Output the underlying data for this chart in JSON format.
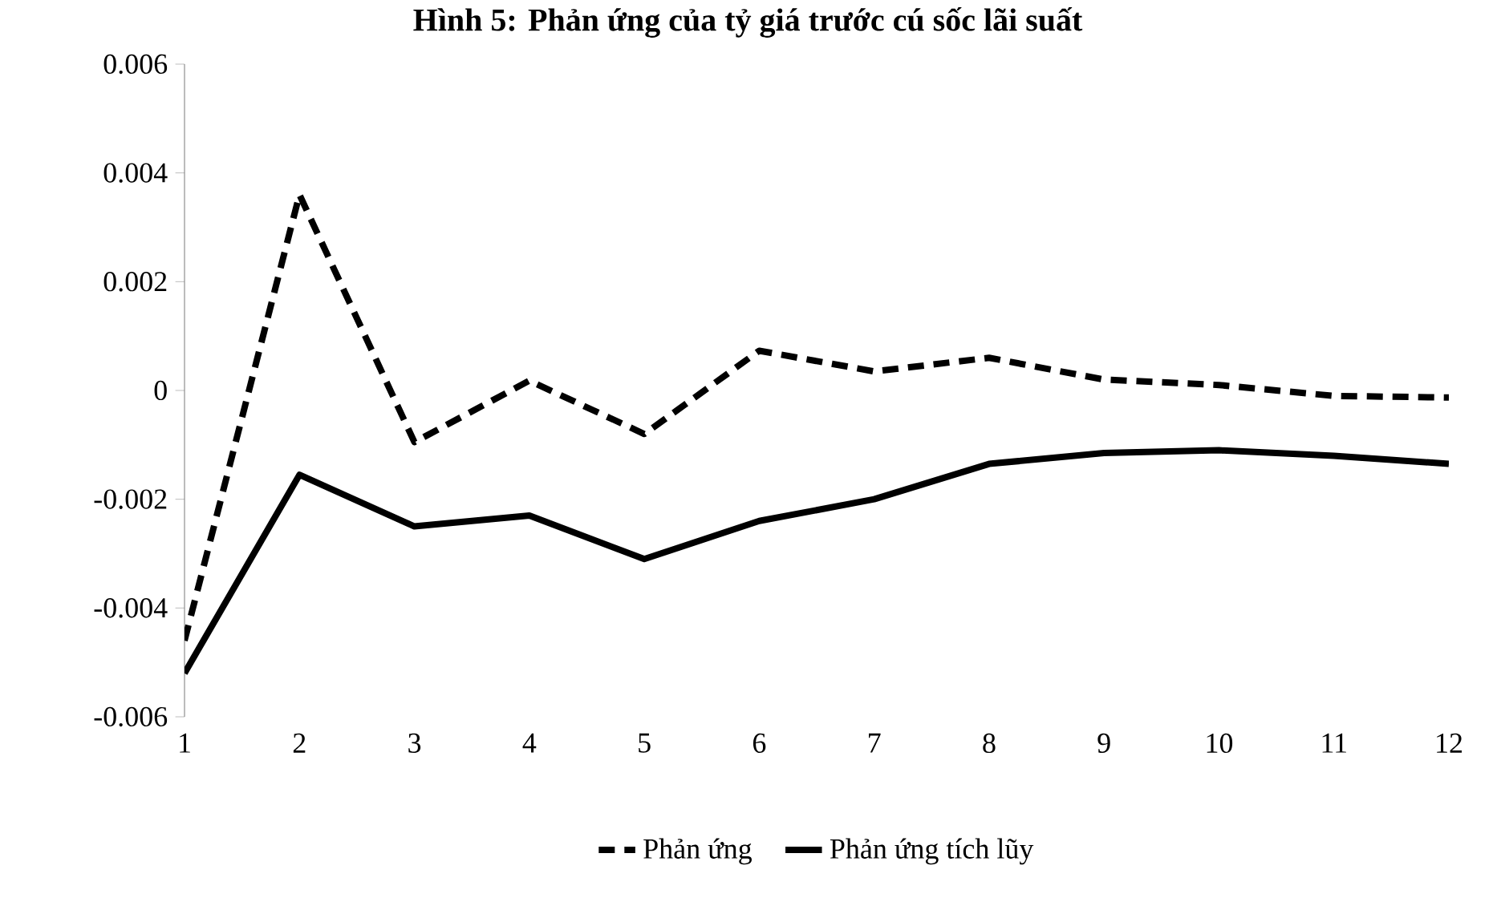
{
  "chart_data": {
    "type": "line",
    "title": "Hình 5: Phản ứng của tỷ giá trước cú sốc lãi suất",
    "categories": [
      "1",
      "2",
      "3",
      "4",
      "5",
      "6",
      "7",
      "8",
      "9",
      "10",
      "11",
      "12"
    ],
    "series": [
      {
        "name": "Phản ứng",
        "color": "#000000",
        "line_style": "dashed",
        "values": [
          -0.0046,
          0.0036,
          -0.00095,
          0.00018,
          -0.0008,
          0.00073,
          0.00035,
          0.0006,
          0.0002,
          0.0001,
          -0.0001,
          -0.00013
        ]
      },
      {
        "name": "Phản ứng tích lũy",
        "color": "#000000",
        "line_style": "solid",
        "values": [
          -0.0052,
          -0.00155,
          -0.0025,
          -0.0023,
          -0.0031,
          -0.0024,
          -0.002,
          -0.00135,
          -0.00115,
          -0.0011,
          -0.0012,
          -0.00135
        ]
      }
    ],
    "ylim": [
      -0.006,
      0.006
    ],
    "yticks": [
      -0.006,
      -0.004,
      -0.002,
      0,
      0.002,
      0.004,
      0.006
    ],
    "legend": "bottom",
    "grid": false,
    "marker": "none"
  }
}
